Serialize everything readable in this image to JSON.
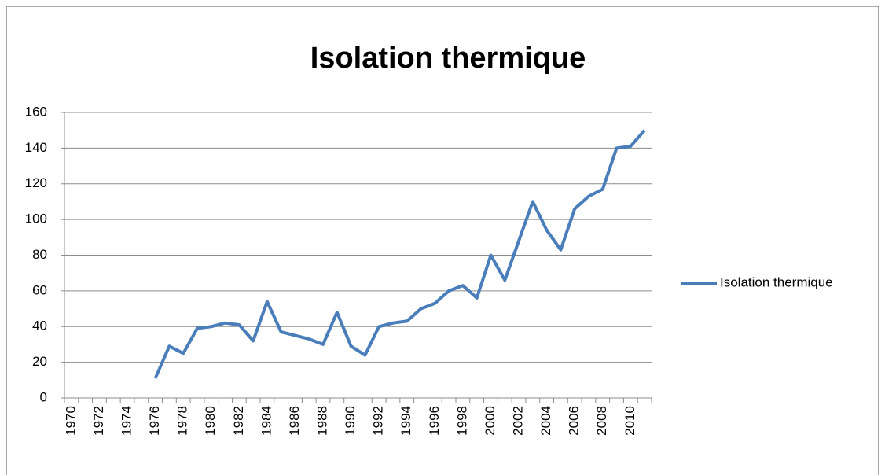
{
  "chart_data": {
    "type": "line",
    "title": "Isolation thermique",
    "categories": [
      "1970",
      null,
      "1972",
      null,
      "1974",
      null,
      "1976",
      null,
      "1978",
      null,
      "1980",
      null,
      "1982",
      null,
      "1984",
      null,
      "1986",
      null,
      "1988",
      null,
      "1990",
      null,
      "1992",
      null,
      "1994",
      null,
      "1996",
      null,
      "1998",
      null,
      "2000",
      null,
      "2002",
      null,
      "2004",
      null,
      "2006",
      null,
      "2008",
      null,
      "2010",
      null
    ],
    "series": [
      {
        "name": "Isolation thermique",
        "color": "#4a7ebb",
        "values": [
          null,
          null,
          null,
          null,
          null,
          null,
          11,
          29,
          25,
          39,
          40,
          42,
          41,
          32,
          54,
          37,
          35,
          33,
          30,
          48,
          29,
          24,
          40,
          42,
          43,
          50,
          53,
          60,
          63,
          56,
          80,
          66,
          88,
          110,
          94,
          83,
          106,
          113,
          117,
          140,
          141,
          150
        ]
      }
    ],
    "ylim": [
      0,
      160
    ],
    "yticks": [
      0,
      20,
      40,
      60,
      80,
      100,
      120,
      140,
      160
    ],
    "grid": true,
    "legend": "right"
  }
}
